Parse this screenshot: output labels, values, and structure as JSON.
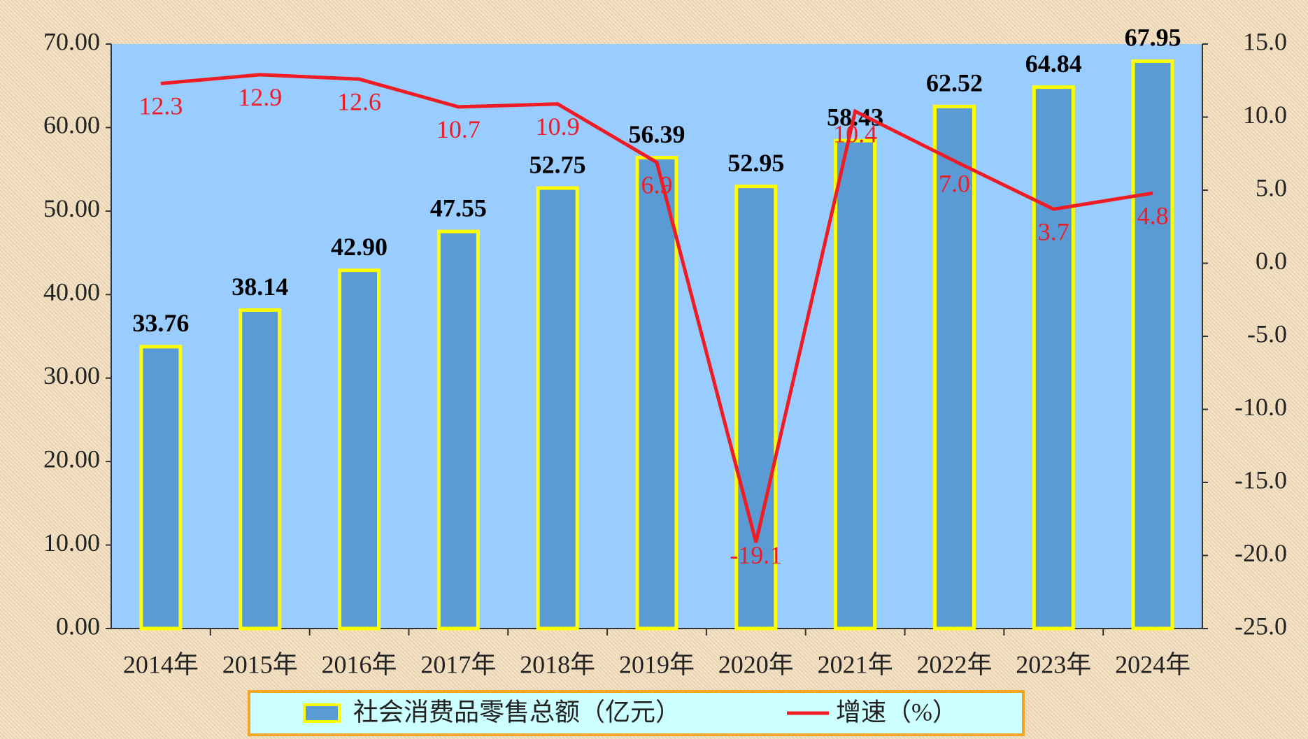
{
  "chart_data": {
    "type": "bar",
    "categories": [
      "2014年",
      "2015年",
      "2016年",
      "2017年",
      "2018年",
      "2019年",
      "2020年",
      "2021年",
      "2022年",
      "2023年",
      "2024年"
    ],
    "series": [
      {
        "name": "社会消费品零售总额（亿元）",
        "type": "bar",
        "color": "#5B9BD5",
        "edge_color": "#FFFF00",
        "values": [
          33.76,
          38.14,
          42.9,
          47.55,
          52.75,
          56.39,
          52.95,
          58.43,
          62.52,
          64.84,
          67.95
        ],
        "value_labels": [
          "33.76",
          "38.14",
          "42.90",
          "47.55",
          "52.75",
          "56.39",
          "52.95",
          "58.43",
          "62.52",
          "64.84",
          "67.95"
        ]
      },
      {
        "name": "增速（%）",
        "type": "line",
        "axis": "y2",
        "color": "#EE1C25",
        "values": [
          12.3,
          12.9,
          12.6,
          10.7,
          10.9,
          6.9,
          -19.1,
          10.4,
          7.0,
          3.7,
          4.8
        ],
        "value_labels": [
          "12.3",
          "12.9",
          "12.6",
          "10.7",
          "10.9",
          "6.9",
          "-19.1",
          "10.4",
          "7.0",
          "3.7",
          "4.8"
        ]
      }
    ],
    "ylim": [
      0,
      70
    ],
    "yticks": [
      {
        "value": 0,
        "label": "0.00"
      },
      {
        "value": 10,
        "label": "10.00"
      },
      {
        "value": 20,
        "label": "20.00"
      },
      {
        "value": 30,
        "label": "30.00"
      },
      {
        "value": 40,
        "label": "40.00"
      },
      {
        "value": 50,
        "label": "50.00"
      },
      {
        "value": 60,
        "label": "60.00"
      },
      {
        "value": 70,
        "label": "70.00"
      }
    ],
    "y2lim": [
      -25,
      15
    ],
    "y2ticks": [
      {
        "value": -25,
        "label": "-25.0"
      },
      {
        "value": -20,
        "label": "-20.0"
      },
      {
        "value": -15,
        "label": "-15.0"
      },
      {
        "value": -10,
        "label": "-10.0"
      },
      {
        "value": -5,
        "label": "-5.0"
      },
      {
        "value": 0,
        "label": "0.0"
      },
      {
        "value": 5,
        "label": "5.0"
      },
      {
        "value": 10,
        "label": "10.0"
      },
      {
        "value": 15,
        "label": "15.0"
      }
    ],
    "grid": false,
    "legend": "bottom"
  }
}
